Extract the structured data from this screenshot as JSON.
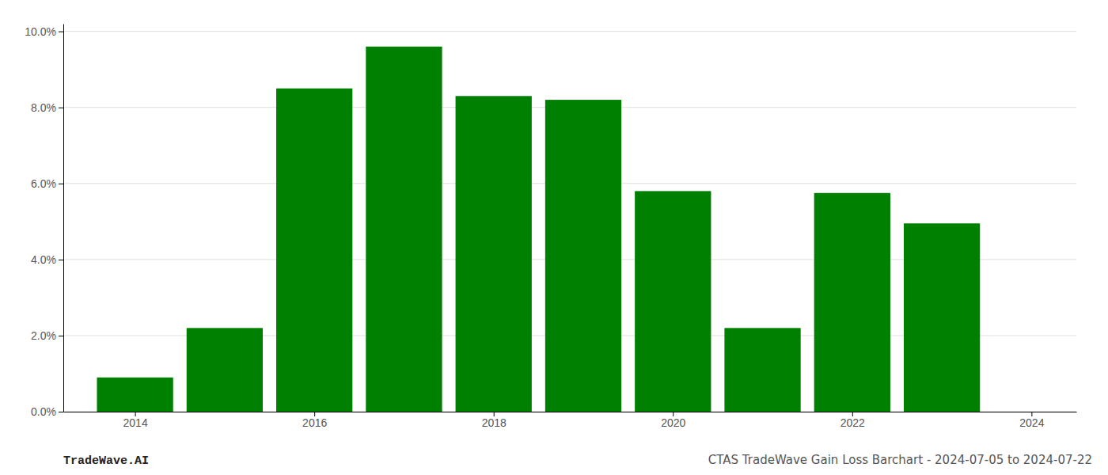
{
  "chart_data": {
    "type": "bar",
    "x": [
      2014,
      2015,
      2016,
      2017,
      2018,
      2019,
      2020,
      2021,
      2022,
      2023
    ],
    "values": [
      0.009,
      0.022,
      0.085,
      0.096,
      0.083,
      0.082,
      0.058,
      0.022,
      0.0575,
      0.0495
    ],
    "color": "#008000",
    "xlim": [
      2013.2,
      2024.5
    ],
    "xticks": [
      2014,
      2016,
      2018,
      2020,
      2022,
      2024
    ],
    "ylim": [
      0.0,
      0.102
    ],
    "yticks": [
      {
        "value": 0.0,
        "label": "0.0%"
      },
      {
        "value": 0.02,
        "label": "2.0%"
      },
      {
        "value": 0.04,
        "label": "4.0%"
      },
      {
        "value": 0.06,
        "label": "6.0%"
      },
      {
        "value": 0.08,
        "label": "8.0%"
      },
      {
        "value": 0.1,
        "label": "10.0%"
      }
    ],
    "grid": true,
    "annotations": [
      "TradeWave.AI",
      "CTAS TradeWave Gain Loss Barchart - 2024-07-05 to 2024-07-22"
    ]
  }
}
